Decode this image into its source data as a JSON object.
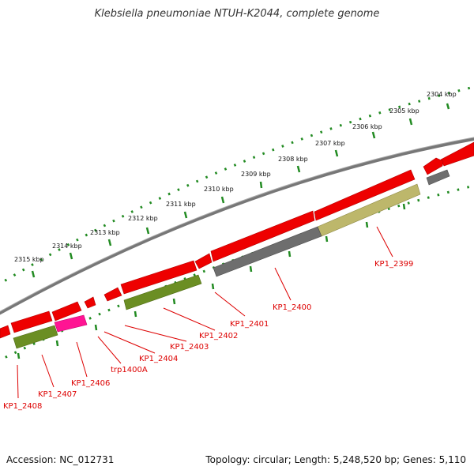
{
  "title": "Klebsiella pneumoniae NTUH-K2044, complete genome",
  "footer": {
    "accession": "Accession: NC_012731",
    "summary": "Topology: circular; Length: 5,248,520 bp; Genes: 5,110"
  },
  "scale_labels": [
    "2304 kbp",
    "2305 kbp",
    "2306 kbp",
    "2307 kbp",
    "2308 kbp",
    "2309 kbp",
    "2310 kbp",
    "2311 kbp",
    "2312 kbp",
    "2313 kbp",
    "2314 kbp",
    "2315 kbp"
  ],
  "gene_labels": [
    "KP1_2399",
    "KP1_2400",
    "KP1_2401",
    "KP1_2402",
    "KP1_2403",
    "KP1_2404",
    "trp1400A",
    "KP1_2406",
    "KP1_2407",
    "KP1_2408"
  ],
  "colors": {
    "gene": "#ee0000",
    "backbone": "#808080",
    "tick": "#228b22",
    "label_line": "#dd0000",
    "label_text": "#dd0000",
    "feature_gray": "#707070",
    "feature_olive": "#6b8e23",
    "feature_khaki": "#bdb76b",
    "feature_magenta": "#ff1493"
  },
  "icons": {}
}
